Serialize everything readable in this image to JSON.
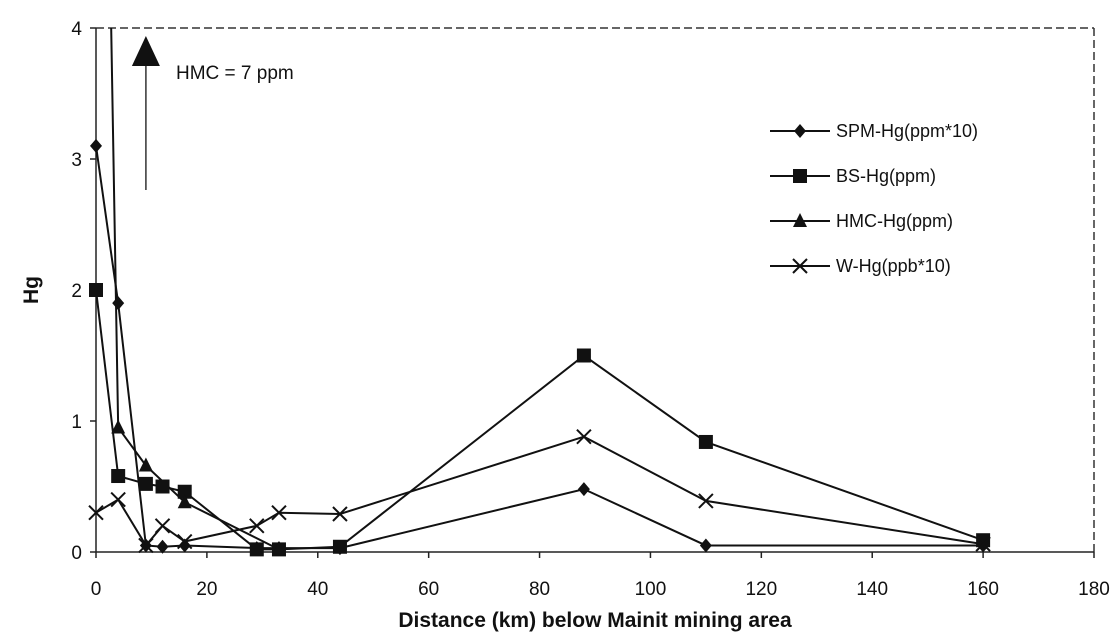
{
  "chart_data": {
    "type": "line",
    "title": "",
    "xlabel": "Distance (km) below Mainit mining area",
    "ylabel": "Hg",
    "xlim": [
      0,
      180
    ],
    "ylim": [
      0,
      4
    ],
    "xticks": [
      0,
      20,
      40,
      60,
      80,
      100,
      120,
      140,
      160,
      180
    ],
    "yticks": [
      0,
      1,
      2,
      3,
      4
    ],
    "grid": false,
    "legend_position": "right",
    "annotation": {
      "text": "HMC = 7 ppm",
      "arrow_x": 9
    },
    "series": [
      {
        "name": "SPM-Hg(ppm*10)",
        "marker": "diamond",
        "x": [
          0,
          4,
          9,
          12,
          16,
          29,
          33,
          44,
          88,
          110,
          160
        ],
        "y": [
          3.1,
          1.9,
          0.05,
          0.04,
          0.05,
          0.03,
          0.03,
          0.03,
          0.48,
          0.05,
          0.05
        ]
      },
      {
        "name": "BS-Hg(ppm)",
        "marker": "square",
        "x": [
          0,
          4,
          9,
          12,
          16,
          29,
          33,
          44,
          88,
          110,
          160
        ],
        "y": [
          2.0,
          0.58,
          0.52,
          0.5,
          0.46,
          0.02,
          0.02,
          0.04,
          1.5,
          0.84,
          0.09
        ]
      },
      {
        "name": "HMC-Hg(ppm)",
        "marker": "triangle",
        "x": [
          1.5,
          4,
          9,
          16,
          33
        ],
        "y": [
          7,
          0.95,
          0.66,
          0.38,
          0.02
        ]
      },
      {
        "name": "W-Hg(ppb*10)",
        "marker": "x",
        "x": [
          0,
          4,
          9,
          12,
          16,
          29,
          33,
          44,
          88,
          110,
          160
        ],
        "y": [
          0.3,
          0.4,
          0.05,
          0.2,
          0.08,
          0.2,
          0.3,
          0.29,
          0.88,
          0.39,
          0.06
        ]
      }
    ]
  }
}
